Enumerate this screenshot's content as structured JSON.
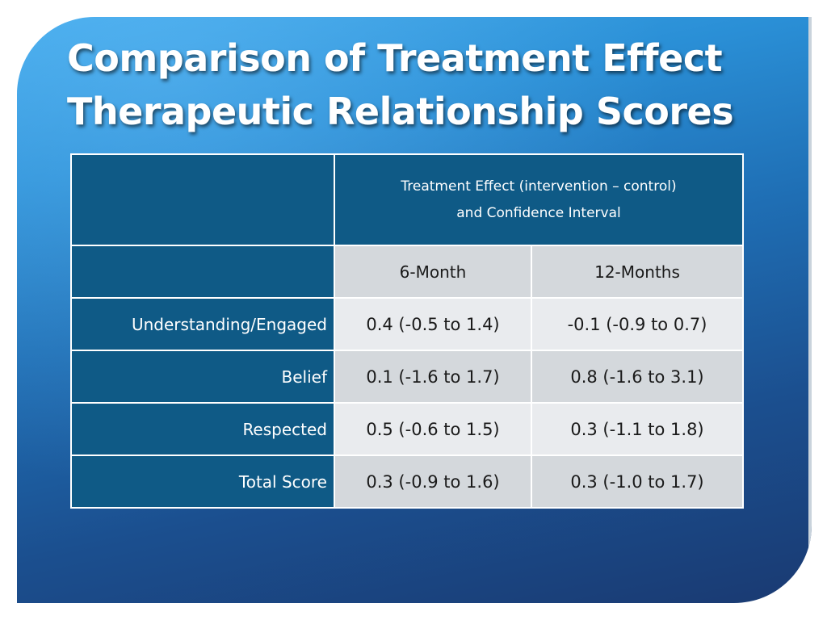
{
  "title": {
    "line1": "Comparison of Treatment Effect",
    "line2": "Therapeutic Relationship Scores"
  },
  "table": {
    "header": {
      "line1": "Treatment Effect  (intervention – control)",
      "line2": "and Confidence Interval"
    },
    "columns": [
      "6-Month",
      "12-Months"
    ],
    "rows": [
      {
        "label": "Understanding/Engaged",
        "six_month": "0.4 (-0.5 to 1.4)",
        "twelve_month": "-0.1 (-0.9 to 0.7)"
      },
      {
        "label": "Belief",
        "six_month": "0.1 (-1.6 to 1.7)",
        "twelve_month": "0.8 (-1.6 to 3.1)"
      },
      {
        "label": "Respected",
        "six_month": "0.5 (-0.6 to 1.5)",
        "twelve_month": "0.3 (-1.1 to 1.8)"
      },
      {
        "label": "Total Score",
        "six_month": "0.3 (-0.9 to 1.6)",
        "twelve_month": "0.3 (-1.0 to 1.7)"
      }
    ]
  },
  "colors": {
    "label_cell": "#0f5a86",
    "value_cell_light": "#e9ebee",
    "value_cell_dark": "#d4d8dc",
    "title_text": "#ffffff"
  }
}
